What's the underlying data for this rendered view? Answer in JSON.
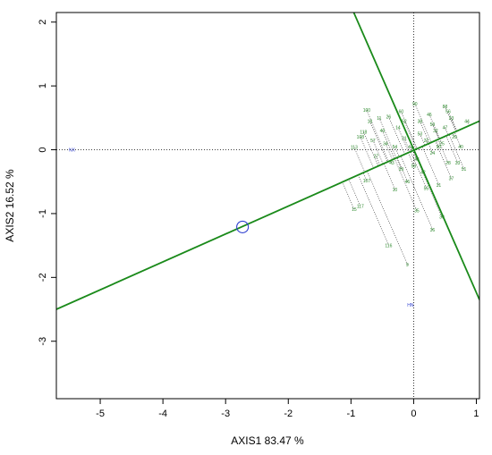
{
  "chart_data": {
    "type": "scatter",
    "xlabel": "AXIS1 83.47 %",
    "ylabel": "AXIS2 16.52 %",
    "xlim": [
      -5.7,
      1.05
    ],
    "ylim": [
      -3.9,
      2.15
    ],
    "xticks": [
      "-5",
      "-4",
      "-3",
      "-2",
      "-1",
      "0",
      "1"
    ],
    "yticks": [
      "2",
      "1",
      "0",
      "-1",
      "-2",
      "-3"
    ],
    "xtick_values": [
      -5,
      -4,
      -3,
      -2,
      -1,
      0,
      1
    ],
    "ytick_values": [
      2,
      1,
      0,
      -1,
      -2,
      -3
    ],
    "grid": false,
    "colors": {
      "axis_lines": "#1a8a1a",
      "reference_lines": "#000000",
      "labels": "#2e8b2e",
      "highlight": "#3040d0"
    },
    "reference_lines": {
      "x": 0,
      "y": 0
    },
    "biplot_lines": [
      {
        "name": "axis-line-a",
        "from": [
          -5.7,
          -2.5
        ],
        "to": [
          1.05,
          0.45
        ]
      },
      {
        "name": "axis-line-b",
        "from": [
          -1.0,
          2.25
        ],
        "to": [
          1.05,
          -2.35
        ]
      }
    ],
    "reference_points": [
      {
        "label": "NX",
        "x": -5.45,
        "y": 0.0
      },
      {
        "label": "HN",
        "x": -0.05,
        "y": -2.43
      }
    ],
    "highlight_point": {
      "x": -2.73,
      "y": -1.21
    },
    "projection_points": [
      {
        "label": "9",
        "x": -0.1,
        "y": -1.8
      },
      {
        "label": "116",
        "x": -0.4,
        "y": -1.5
      },
      {
        "label": "15",
        "x": -0.95,
        "y": -0.93
      },
      {
        "label": "117",
        "x": -0.85,
        "y": -0.88
      },
      {
        "label": "100",
        "x": -0.75,
        "y": 0.62
      },
      {
        "label": "108",
        "x": -0.85,
        "y": 0.2
      },
      {
        "label": "113",
        "x": -0.95,
        "y": 0.04
      },
      {
        "label": "118",
        "x": -0.8,
        "y": 0.28
      },
      {
        "label": "107",
        "x": -0.75,
        "y": -0.48
      },
      {
        "label": "18",
        "x": -0.7,
        "y": 0.45
      },
      {
        "label": "10",
        "x": -0.3,
        "y": -0.62
      },
      {
        "label": "26",
        "x": -0.4,
        "y": 0.52
      },
      {
        "label": "35",
        "x": 0.05,
        "y": -0.95
      },
      {
        "label": "36",
        "x": 0.3,
        "y": -1.25
      },
      {
        "label": "30",
        "x": 0.45,
        "y": -1.05
      },
      {
        "label": "23",
        "x": 0.6,
        "y": 0.5
      },
      {
        "label": "88",
        "x": 0.5,
        "y": 0.68
      },
      {
        "label": "90",
        "x": 0.02,
        "y": 0.72
      },
      {
        "label": "11",
        "x": -0.55,
        "y": 0.5
      },
      {
        "label": "14",
        "x": -0.25,
        "y": 0.35
      },
      {
        "label": "21",
        "x": -0.15,
        "y": 0.18
      },
      {
        "label": "22",
        "x": 0.2,
        "y": 0.15
      },
      {
        "label": "24",
        "x": 0.3,
        "y": -0.05
      },
      {
        "label": "25",
        "x": 0.45,
        "y": 0.1
      },
      {
        "label": "27",
        "x": -0.6,
        "y": -0.1
      },
      {
        "label": "28",
        "x": 0.55,
        "y": -0.2
      },
      {
        "label": "29",
        "x": 0.65,
        "y": 0.2
      },
      {
        "label": "31",
        "x": 0.4,
        "y": -0.55
      },
      {
        "label": "32",
        "x": 0.35,
        "y": 0.3
      },
      {
        "label": "33",
        "x": 0.7,
        "y": -0.2
      },
      {
        "label": "34",
        "x": -0.45,
        "y": 0.1
      },
      {
        "label": "37",
        "x": 0.6,
        "y": -0.45
      },
      {
        "label": "38",
        "x": 0.1,
        "y": 0.45
      },
      {
        "label": "39",
        "x": -0.2,
        "y": -0.3
      },
      {
        "label": "40",
        "x": 0.75,
        "y": 0.05
      },
      {
        "label": "41",
        "x": -0.05,
        "y": 0.05
      },
      {
        "label": "42",
        "x": 0.15,
        "y": -0.35
      },
      {
        "label": "43",
        "x": -0.35,
        "y": -0.2
      },
      {
        "label": "44",
        "x": 0.85,
        "y": 0.45
      },
      {
        "label": "45",
        "x": 0.25,
        "y": 0.55
      },
      {
        "label": "46",
        "x": -0.1,
        "y": -0.5
      },
      {
        "label": "47",
        "x": 0.5,
        "y": 0.35
      },
      {
        "label": "48",
        "x": 0.05,
        "y": -0.15
      },
      {
        "label": "49",
        "x": -0.5,
        "y": 0.3
      },
      {
        "label": "50",
        "x": 0.4,
        "y": 0.05
      },
      {
        "label": "51",
        "x": 0.8,
        "y": -0.3
      },
      {
        "label": "52",
        "x": -0.15,
        "y": 0.45
      },
      {
        "label": "53",
        "x": 0.1,
        "y": 0.25
      },
      {
        "label": "54",
        "x": -0.3,
        "y": 0.05
      },
      {
        "label": "55",
        "x": 0.2,
        "y": -0.6
      },
      {
        "label": "56",
        "x": 0.55,
        "y": 0.6
      },
      {
        "label": "57",
        "x": -0.65,
        "y": 0.15
      },
      {
        "label": "58",
        "x": 0.0,
        "y": -0.25
      },
      {
        "label": "59",
        "x": 0.3,
        "y": 0.4
      },
      {
        "label": "60",
        "x": -0.2,
        "y": 0.6
      }
    ]
  }
}
